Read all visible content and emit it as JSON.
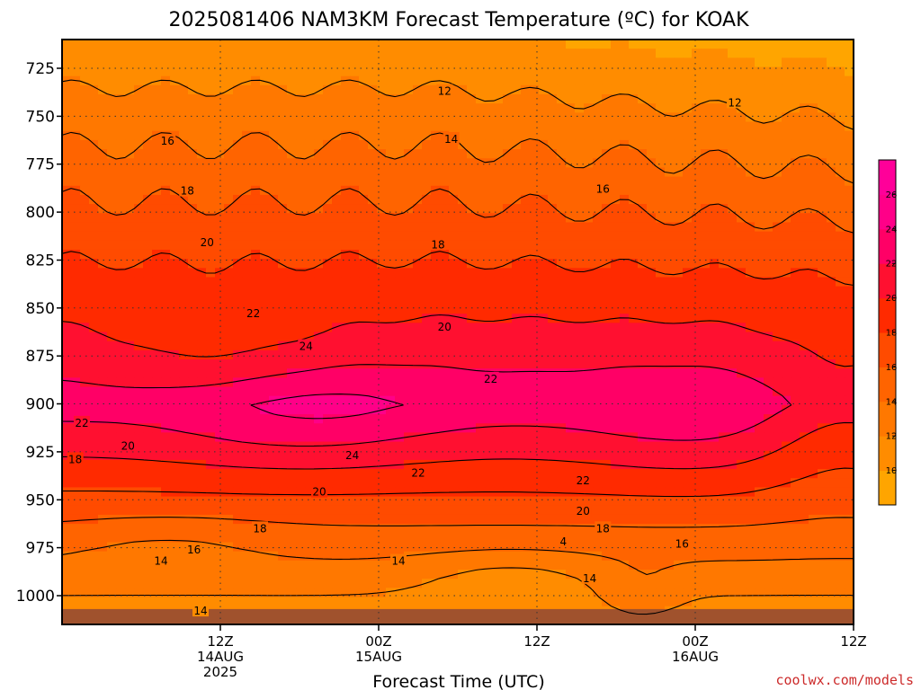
{
  "chart_data": {
    "type": "heatmap",
    "title": "2025081406 NAM3KM Forecast Temperature (ºC) for KOAK",
    "xlabel": "Forecast Time (UTC)",
    "ylabel": "",
    "y_ticks": [
      725,
      750,
      775,
      800,
      825,
      850,
      875,
      900,
      925,
      950,
      975,
      1000
    ],
    "ylim": [
      1015,
      710
    ],
    "xlim_hours": [
      -6,
      54
    ],
    "x_ticks": [
      {
        "hour": 6,
        "label": "12Z",
        "date": "14AUG",
        "year": "2025"
      },
      {
        "hour": 18,
        "label": "00Z",
        "date": "15AUG",
        "year": ""
      },
      {
        "hour": 30,
        "label": "12Z",
        "date": "",
        "year": ""
      },
      {
        "hour": 42,
        "label": "00Z",
        "date": "16AUG",
        "year": ""
      },
      {
        "hour": 54,
        "label": "12Z",
        "date": "",
        "year": ""
      }
    ],
    "grid": true,
    "colorbar": {
      "levels": [
        8,
        10,
        12,
        14,
        16,
        18,
        20,
        22,
        24,
        26,
        28
      ],
      "tick_labels": [
        "10",
        "12",
        "14",
        "16",
        "18",
        "20",
        "22",
        "24",
        "26"
      ],
      "colors": [
        "#ffa500",
        "#ff8c00",
        "#ff7800",
        "#ff6400",
        "#ff4b00",
        "#ff2a00",
        "#ff1030",
        "#ff0066",
        "#ff0088",
        "#ff0099"
      ]
    },
    "isotherm_labels": [
      {
        "text": "12",
        "hour": 23.0,
        "pres": 737
      },
      {
        "text": "12",
        "hour": 45.0,
        "pres": 743
      },
      {
        "text": "14",
        "hour": 23.5,
        "pres": 762
      },
      {
        "text": "16",
        "hour": 2.0,
        "pres": 763
      },
      {
        "text": "16",
        "hour": 35.0,
        "pres": 788
      },
      {
        "text": "18",
        "hour": 3.5,
        "pres": 789
      },
      {
        "text": "18",
        "hour": 22.5,
        "pres": 817
      },
      {
        "text": "20",
        "hour": 5.0,
        "pres": 816
      },
      {
        "text": "20",
        "hour": 23.0,
        "pres": 860
      },
      {
        "text": "22",
        "hour": 8.5,
        "pres": 853
      },
      {
        "text": "22",
        "hour": 26.5,
        "pres": 887
      },
      {
        "text": "24",
        "hour": 12.5,
        "pres": 870
      },
      {
        "text": "22",
        "hour": -4.5,
        "pres": 910
      },
      {
        "text": "20",
        "hour": -1.0,
        "pres": 922
      },
      {
        "text": "18",
        "hour": -5.0,
        "pres": 929
      },
      {
        "text": "24",
        "hour": 16.0,
        "pres": 927
      },
      {
        "text": "22",
        "hour": 21.0,
        "pres": 936
      },
      {
        "text": "22",
        "hour": 33.5,
        "pres": 940
      },
      {
        "text": "20",
        "hour": 13.5,
        "pres": 946
      },
      {
        "text": "20",
        "hour": 33.5,
        "pres": 956
      },
      {
        "text": "18",
        "hour": 9.0,
        "pres": 965
      },
      {
        "text": "18",
        "hour": 35.0,
        "pres": 965
      },
      {
        "text": "16",
        "hour": 4.0,
        "pres": 976
      },
      {
        "text": "16",
        "hour": 41.0,
        "pres": 973
      },
      {
        "text": "14",
        "hour": 1.5,
        "pres": 982
      },
      {
        "text": "14",
        "hour": 19.5,
        "pres": 982
      },
      {
        "text": "14",
        "hour": 34.0,
        "pres": 991
      },
      {
        "text": "14",
        "hour": 4.5,
        "pres": 1008
      },
      {
        "text": "4",
        "hour": 32.0,
        "pres": 972
      }
    ]
  },
  "footer": {
    "credit": "coolwx.com/models"
  }
}
